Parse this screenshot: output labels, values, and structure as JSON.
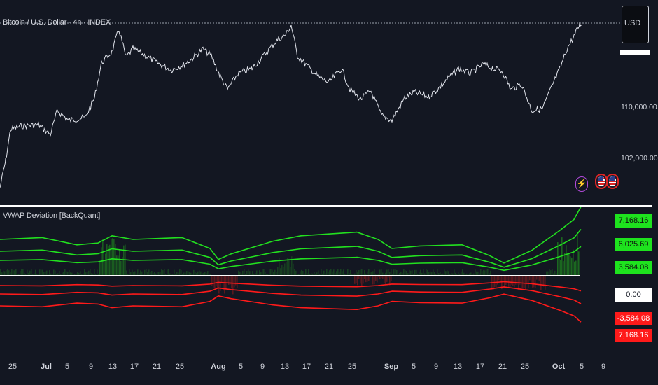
{
  "price_pane": {
    "title": "Bitcoin / U.S. Dollar · 4h · INDEX",
    "currency": "USD",
    "y_labels": [
      "110,000.00",
      "102,000.00"
    ],
    "line_color": "#e0e3eb"
  },
  "indicator_pane": {
    "title": "VWAP Deviation [BackQuant]",
    "tags": [
      "7,168.16",
      "6,025.69",
      "3,584.08",
      "0.00",
      "-3,584.08",
      "7,168.16"
    ],
    "upper_band_color": "#22e01f",
    "lower_band_color": "#ff1a1a",
    "zero_line_color": "#ffffff"
  },
  "events": {
    "bolt_icon": "lightning-icon",
    "flag_icons": [
      "us-flag-icon",
      "us-flag-icon"
    ]
  },
  "time_axis": [
    "25",
    "Jul",
    "5",
    "9",
    "13",
    "17",
    "21",
    "25",
    "Aug",
    "5",
    "9",
    "13",
    "17",
    "21",
    "25",
    "Sep",
    "5",
    "9",
    "13",
    "17",
    "21",
    "25",
    "Oct",
    "5",
    "9"
  ],
  "time_axis_months": [
    "Jul",
    "Aug",
    "Sep",
    "Oct"
  ]
}
